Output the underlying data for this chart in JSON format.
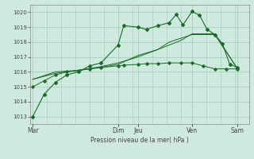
{
  "background_color": "#ceeade",
  "grid_color": "#a8cfc0",
  "line_color": "#1a6b2a",
  "xlabel_text": "Pression niveau de la mer( hPa )",
  "ylim": [
    1012.5,
    1020.5
  ],
  "yticks": [
    1013,
    1014,
    1015,
    1016,
    1017,
    1018,
    1019,
    1020
  ],
  "day_labels": [
    "Mar",
    "",
    "Dim",
    "Jeu",
    "",
    "Ven",
    "",
    "Sam"
  ],
  "day_positions": [
    0,
    1.875,
    3.75,
    4.625,
    6.25,
    7.0,
    8.125,
    9.0
  ],
  "xlim": [
    -0.1,
    9.5
  ],
  "series1_x": [
    0,
    0.5,
    1.0,
    1.5,
    2.0,
    2.5,
    3.0,
    3.75,
    4.0,
    4.625,
    5.0,
    5.5,
    6.0,
    6.3,
    6.6,
    7.0,
    7.33,
    7.66,
    8.0,
    8.33,
    8.66,
    9.0
  ],
  "series1_y": [
    1013.0,
    1014.5,
    1015.3,
    1015.8,
    1016.0,
    1016.4,
    1016.6,
    1017.8,
    1019.1,
    1019.0,
    1018.85,
    1019.1,
    1019.3,
    1019.85,
    1019.15,
    1020.05,
    1019.8,
    1018.85,
    1018.5,
    1017.9,
    1016.5,
    1016.3
  ],
  "series1_markers_x": [
    0,
    0.5,
    1.0,
    1.5,
    2.0,
    2.5,
    3.0,
    3.75,
    4.0,
    4.625,
    5.0,
    5.5,
    6.0,
    6.3,
    6.6,
    7.0,
    7.33,
    7.66,
    8.0,
    8.33,
    8.66,
    9.0
  ],
  "series1_markers_y": [
    1013.0,
    1014.5,
    1015.3,
    1015.8,
    1016.0,
    1016.4,
    1016.6,
    1017.8,
    1019.1,
    1019.0,
    1018.85,
    1019.1,
    1019.3,
    1019.85,
    1019.15,
    1020.05,
    1019.8,
    1018.85,
    1018.5,
    1017.9,
    1016.5,
    1016.3
  ],
  "series2_x": [
    0,
    0.5,
    1.0,
    1.5,
    2.0,
    2.5,
    3.0,
    3.75,
    4.0,
    4.625,
    5.0,
    5.5,
    6.0,
    6.5,
    7.0,
    7.5,
    8.0,
    8.5,
    9.0
  ],
  "series2_y": [
    1015.0,
    1015.4,
    1015.8,
    1016.0,
    1016.1,
    1016.2,
    1016.3,
    1016.4,
    1016.45,
    1016.5,
    1016.55,
    1016.55,
    1016.6,
    1016.6,
    1016.6,
    1016.4,
    1016.2,
    1016.2,
    1016.2
  ],
  "series3_x": [
    0,
    1.0,
    2.0,
    3.0,
    3.75,
    4.625,
    5.5,
    6.0,
    7.0,
    8.0,
    9.0
  ],
  "series3_y": [
    1015.5,
    1015.9,
    1016.1,
    1016.3,
    1016.5,
    1017.1,
    1017.5,
    1018.0,
    1018.5,
    1018.5,
    1016.2
  ],
  "series4_x": [
    0,
    1.0,
    2.0,
    3.0,
    3.75,
    4.625,
    5.5,
    6.5,
    7.0,
    8.0,
    9.0
  ],
  "series4_y": [
    1015.5,
    1016.0,
    1016.1,
    1016.35,
    1016.6,
    1017.0,
    1017.5,
    1018.1,
    1018.55,
    1018.55,
    1016.2
  ],
  "vlines_x": [
    0,
    3.75,
    4.625,
    7.0,
    9.0
  ],
  "figsize": [
    3.2,
    2.0
  ],
  "dpi": 100
}
